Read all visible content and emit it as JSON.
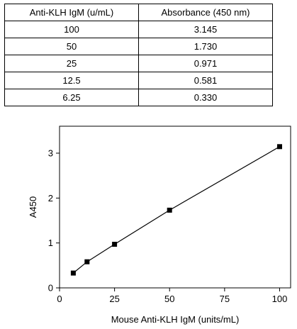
{
  "table": {
    "headers": [
      "Anti-KLH IgM (u/mL)",
      "Absorbance (450 nm)"
    ],
    "rows": [
      [
        "100",
        "3.145"
      ],
      [
        "50",
        "1.730"
      ],
      [
        "25",
        "0.971"
      ],
      [
        "12.5",
        "0.581"
      ],
      [
        "6.25",
        "0.330"
      ]
    ]
  },
  "chart_data": {
    "type": "line",
    "title": "",
    "xlabel": "Mouse Anti-KLH IgM (units/mL)",
    "ylabel": "A450",
    "xlim": [
      0,
      105
    ],
    "ylim": [
      0,
      3.6
    ],
    "xticks": [
      0,
      25,
      50,
      75,
      100
    ],
    "yticks": [
      0,
      1,
      2,
      3
    ],
    "grid": false,
    "series": [
      {
        "x": [
          6.25,
          12.5,
          25,
          50,
          100
        ],
        "y": [
          0.33,
          0.581,
          0.971,
          1.73,
          3.145
        ],
        "marker": "square",
        "color": "#000000"
      }
    ]
  }
}
